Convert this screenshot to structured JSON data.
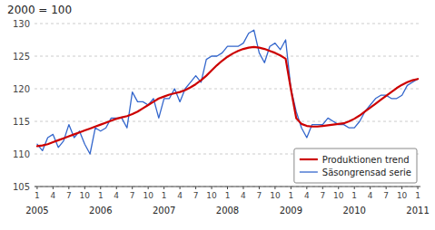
{
  "chart_data": {
    "type": "line",
    "title": "2000 = 100",
    "categories": [
      "1",
      null,
      null,
      "4",
      null,
      null,
      "7",
      null,
      null,
      "10",
      null,
      null,
      "1",
      null,
      null,
      "4",
      null,
      null,
      "7",
      null,
      null,
      "10",
      null,
      null,
      "1",
      null,
      null,
      "4",
      null,
      null,
      "7",
      null,
      null,
      "10",
      null,
      null,
      "1",
      null,
      null,
      "4",
      null,
      null,
      "7",
      null,
      null,
      "10",
      null,
      null,
      "1",
      null,
      null,
      "4",
      null,
      null,
      "7",
      null,
      null,
      "10",
      null,
      null,
      "1",
      null,
      null,
      "4",
      null,
      null,
      "7",
      null,
      null,
      "10",
      null,
      null,
      "1"
    ],
    "series": [
      {
        "name": "Säsongrensad serie",
        "color": "#3366cc",
        "values": [
          111.5,
          110.5,
          112.5,
          113.0,
          111.0,
          112.0,
          114.5,
          112.5,
          113.5,
          111.5,
          110.0,
          114.0,
          113.5,
          114.0,
          115.5,
          115.5,
          115.5,
          114.0,
          119.5,
          118.0,
          118.0,
          117.5,
          118.5,
          115.5,
          118.5,
          118.5,
          120.0,
          118.0,
          120.0,
          121.0,
          122.0,
          121.0,
          124.5,
          125.0,
          125.0,
          125.5,
          126.5,
          126.5,
          126.5,
          127.0,
          128.5,
          129.0,
          125.5,
          124.0,
          126.5,
          127.0,
          126.0,
          127.5,
          120.0,
          116.5,
          114.0,
          112.5,
          114.5,
          114.5,
          114.5,
          115.5,
          115.0,
          114.5,
          114.5,
          114.0,
          114.0,
          115.0,
          116.5,
          117.5,
          118.5,
          119.0,
          119.0,
          118.5,
          118.5,
          119.0,
          120.5,
          121.0,
          121.5
        ]
      },
      {
        "name": "Produktionen trend",
        "color": "#cc0000",
        "values": [
          111.2,
          111.3,
          111.5,
          111.8,
          112.1,
          112.4,
          112.7,
          113.0,
          113.3,
          113.6,
          113.9,
          114.2,
          114.5,
          114.8,
          115.1,
          115.4,
          115.6,
          115.8,
          116.1,
          116.5,
          117.0,
          117.5,
          118.0,
          118.5,
          118.8,
          119.1,
          119.3,
          119.5,
          119.8,
          120.2,
          120.7,
          121.3,
          122.0,
          122.8,
          123.6,
          124.3,
          124.9,
          125.4,
          125.8,
          126.1,
          126.3,
          126.4,
          126.3,
          126.1,
          125.8,
          125.5,
          125.1,
          124.6,
          119.9,
          115.5,
          114.6,
          114.3,
          114.2,
          114.2,
          114.3,
          114.4,
          114.5,
          114.6,
          114.7,
          115.0,
          115.4,
          115.9,
          116.5,
          117.1,
          117.7,
          118.3,
          118.9,
          119.5,
          120.1,
          120.6,
          121.0,
          121.3,
          121.5
        ]
      }
    ],
    "annotations": [
      {
        "text": "2005",
        "x": 0
      },
      {
        "text": "2006",
        "x": 12
      },
      {
        "text": "2007",
        "x": 24
      },
      {
        "text": "2008",
        "x": 36
      },
      {
        "text": "2009",
        "x": 48
      },
      {
        "text": "2010",
        "x": 60
      },
      {
        "text": "2011",
        "x": 72
      }
    ],
    "ylim": [
      105,
      130
    ],
    "yticks": [
      105,
      110,
      115,
      120,
      125,
      130
    ],
    "grid": true,
    "legend": "lower right"
  }
}
